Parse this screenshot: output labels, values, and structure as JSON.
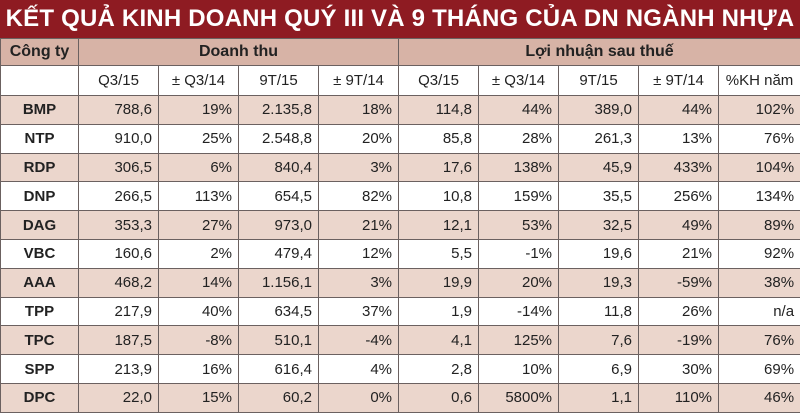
{
  "title": "KẾT QUẢ KINH DOANH QUÝ III VÀ 9 THÁNG CỦA DN NGÀNH NHỰA",
  "colors": {
    "title_bg": "#8e1b22",
    "header_bg": "#d7b3a6",
    "alt_row_bg": "#ebd6cc"
  },
  "header": {
    "company": "Công ty",
    "revenue_group": "Doanh thu",
    "profit_group": "Lợi nhuận sau thuế",
    "revenue_cols": [
      "Q3/15",
      "± Q3/14",
      "9T/15",
      "± 9T/14"
    ],
    "profit_cols": [
      "Q3/15",
      "± Q3/14",
      "9T/15",
      "± 9T/14",
      "%KH năm"
    ]
  },
  "rows": [
    [
      "BMP",
      "788,6",
      "19%",
      "2.135,8",
      "18%",
      "114,8",
      "44%",
      "389,0",
      "44%",
      "102%"
    ],
    [
      "NTP",
      "910,0",
      "25%",
      "2.548,8",
      "20%",
      "85,8",
      "28%",
      "261,3",
      "13%",
      "76%"
    ],
    [
      "RDP",
      "306,5",
      "6%",
      "840,4",
      "3%",
      "17,6",
      "138%",
      "45,9",
      "433%",
      "104%"
    ],
    [
      "DNP",
      "266,5",
      "113%",
      "654,5",
      "82%",
      "10,8",
      "159%",
      "35,5",
      "256%",
      "134%"
    ],
    [
      "DAG",
      "353,3",
      "27%",
      "973,0",
      "21%",
      "12,1",
      "53%",
      "32,5",
      "49%",
      "89%"
    ],
    [
      "VBC",
      "160,6",
      "2%",
      "479,4",
      "12%",
      "5,5",
      "-1%",
      "19,6",
      "21%",
      "92%"
    ],
    [
      "AAA",
      "468,2",
      "14%",
      "1.156,1",
      "3%",
      "19,9",
      "20%",
      "19,3",
      "-59%",
      "38%"
    ],
    [
      "TPP",
      "217,9",
      "40%",
      "634,5",
      "37%",
      "1,9",
      "-14%",
      "11,8",
      "26%",
      "n/a"
    ],
    [
      "TPC",
      "187,5",
      "-8%",
      "510,1",
      "-4%",
      "4,1",
      "125%",
      "7,6",
      "-19%",
      "76%"
    ],
    [
      "SPP",
      "213,9",
      "16%",
      "616,4",
      "4%",
      "2,8",
      "10%",
      "6,9",
      "30%",
      "69%"
    ],
    [
      "DPC",
      "22,0",
      "15%",
      "60,2",
      "0%",
      "0,6",
      "5800%",
      "1,1",
      "110%",
      "46%"
    ]
  ]
}
